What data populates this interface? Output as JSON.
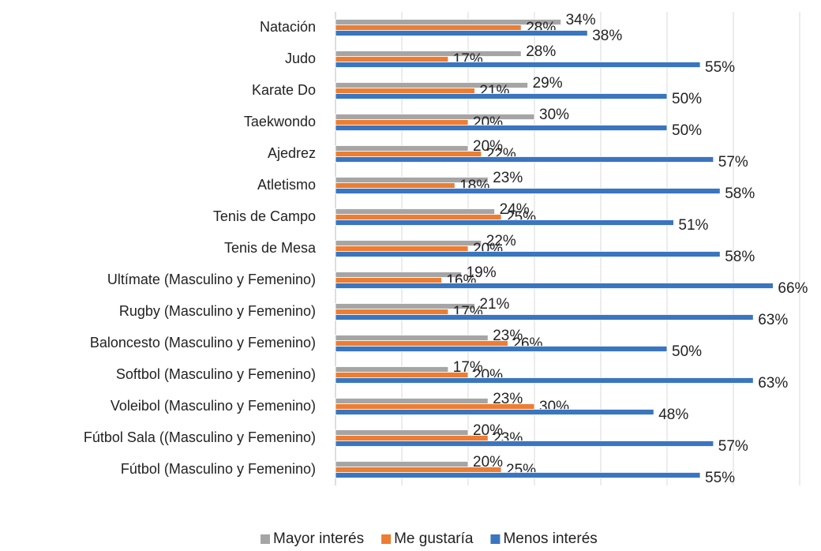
{
  "chart_data": {
    "type": "hbar",
    "categories": [
      "Natación",
      "Judo",
      "Karate Do",
      "Taekwondo",
      "Ajedrez",
      "Atletismo",
      "Tenis de Campo",
      "Tenis de Mesa",
      "Ultímate (Masculino y Femenino)",
      "Rugby (Masculino y Femenino)",
      "Baloncesto (Masculino y Femenino)",
      "Softbol (Masculino y Femenino)",
      "Voleibol (Masculino y Femenino)",
      "Fútbol Sala ((Masculino y Femenino)",
      "Fútbol (Masculino y Femenino)"
    ],
    "series": [
      {
        "name": "Mayor interés",
        "color": "#a5a5a5",
        "values": [
          34,
          28,
          29,
          30,
          20,
          23,
          24,
          22,
          19,
          21,
          23,
          17,
          23,
          20,
          20
        ],
        "value_labels": [
          "34%",
          "28%",
          "29%",
          "30%",
          "20%",
          "23%",
          "24%",
          "22%",
          "19%",
          "21%",
          "23%",
          "17%",
          "23%",
          "20%",
          "20%"
        ]
      },
      {
        "name": "Me gustaría",
        "color": "#ed7d31",
        "values": [
          28,
          17,
          21,
          20,
          22,
          18,
          25,
          20,
          16,
          17,
          26,
          20,
          30,
          23,
          25
        ],
        "value_labels": [
          "28%",
          "17%",
          "21%",
          "20%",
          "22%",
          "18%",
          "25%",
          "20%",
          "16%",
          "17%",
          "26%",
          "20%",
          "30%",
          "23%",
          "25%"
        ]
      },
      {
        "name": "Menos interés",
        "color": "#3a75c0",
        "values": [
          38,
          55,
          50,
          50,
          57,
          58,
          51,
          58,
          66,
          63,
          50,
          63,
          48,
          57,
          55
        ],
        "value_labels": [
          "38%",
          "55%",
          "50%",
          "50%",
          "57%",
          "58%",
          "51%",
          "58%",
          "66%",
          "63%",
          "50%",
          "63%",
          "48%",
          "57%",
          "55%"
        ]
      }
    ],
    "xlim": [
      0,
      70
    ],
    "xticks": [
      0,
      10,
      20,
      30,
      40,
      50,
      60,
      70
    ],
    "grid": true,
    "legend": "bottom"
  }
}
